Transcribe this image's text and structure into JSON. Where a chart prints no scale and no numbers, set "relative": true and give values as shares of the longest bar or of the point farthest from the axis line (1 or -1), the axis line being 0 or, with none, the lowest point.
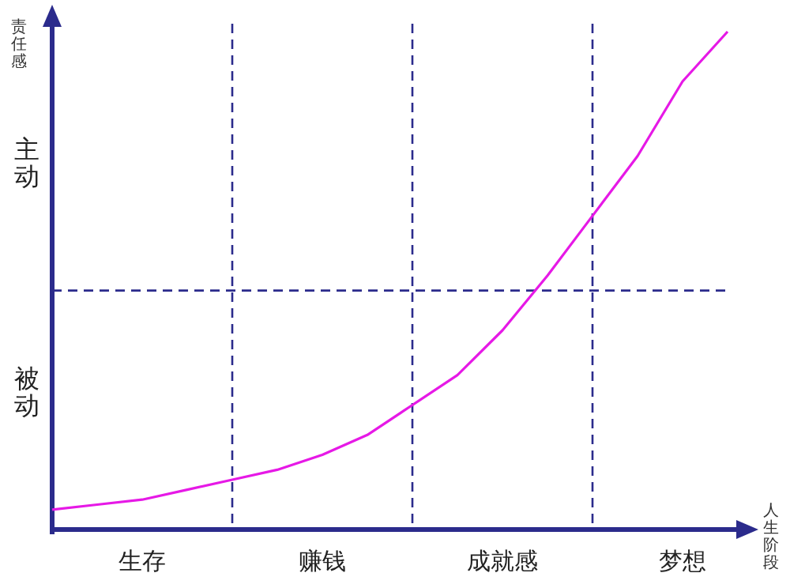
{
  "chart_data": {
    "type": "line",
    "relative": true,
    "ylabel": "责任感",
    "xlabel": "人生阶段",
    "categories": [
      null,
      null,
      "生存",
      null,
      null,
      null,
      "赚钱",
      null,
      null,
      null,
      "成就感",
      null,
      null,
      null,
      "梦想",
      null,
      null
    ],
    "annotations": [
      "主动",
      "被动"
    ],
    "grid": "x",
    "ref_lines": [
      {
        "axis": "y",
        "value": 0.48,
        "color": "#2b2b8c",
        "line_style": "dashed"
      }
    ],
    "series": [
      {
        "color": "#e619e6",
        "values": [
          0.04,
          0.05,
          0.06,
          0.08,
          0.1,
          0.12,
          0.15,
          0.19,
          0.25,
          0.31,
          0.4,
          0.51,
          0.63,
          0.75,
          0.9,
          1.0,
          null
        ]
      }
    ]
  }
}
